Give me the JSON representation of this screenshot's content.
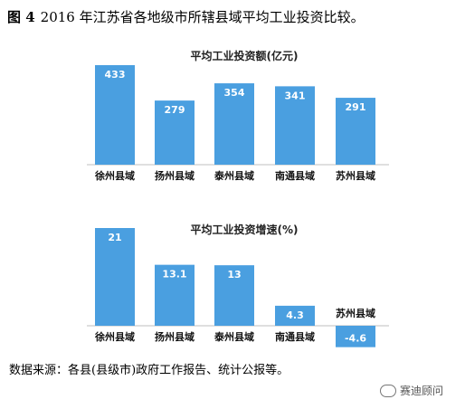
{
  "figure": {
    "label": "图 4",
    "title": "2016 年江苏省各地级市所辖县域平均工业投资比较。"
  },
  "source_note": "数据来源：各县(县级市)政府工作报告、统计公报等。",
  "watermark": "赛迪顾问",
  "colors": {
    "bar": "#4a9fe0",
    "axis": "#bfbfbf",
    "value_label": "#ffffff",
    "negative_label": "#ffffff"
  },
  "chart_data": [
    {
      "type": "bar",
      "title": "平均工业投资额(亿元)",
      "categories": [
        "徐州县域",
        "扬州县域",
        "泰州县域",
        "南通县域",
        "苏州县域"
      ],
      "values": [
        433,
        279,
        354,
        341,
        291
      ],
      "value_labels": [
        "433",
        "279",
        "354",
        "341",
        "291"
      ],
      "ylim": [
        0,
        433
      ],
      "grid": false,
      "legend": "none"
    },
    {
      "type": "bar",
      "title": "平均工业投资增速(%)",
      "categories": [
        "徐州县域",
        "扬州县域",
        "泰州县域",
        "南通县域",
        "苏州县域"
      ],
      "values": [
        21,
        13.1,
        13,
        4.3,
        -4.6
      ],
      "value_labels": [
        "21",
        "13.1",
        "13",
        "4.3",
        "-4.6"
      ],
      "ylim": [
        -4.6,
        21
      ],
      "grid": false,
      "legend": "none"
    }
  ]
}
